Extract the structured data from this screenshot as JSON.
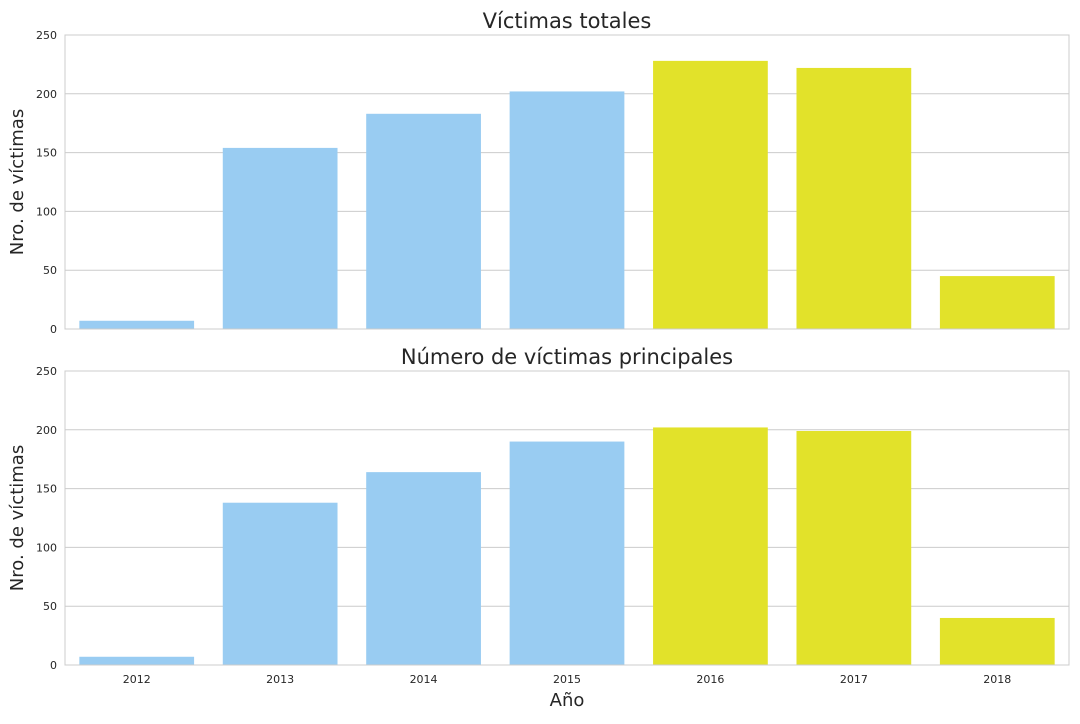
{
  "chart_data": [
    {
      "type": "bar",
      "title": "Víctimas totales",
      "ylabel": "Nro. de víctimas",
      "xlabel": "",
      "categories": [
        "2012",
        "2013",
        "2014",
        "2015",
        "2016",
        "2017",
        "2018"
      ],
      "values": [
        7,
        154,
        183,
        202,
        228,
        222,
        45
      ],
      "bar_colors": [
        "#99ccf2",
        "#99ccf2",
        "#99ccf2",
        "#99ccf2",
        "#e2e22a",
        "#e2e22a",
        "#e2e22a"
      ],
      "ylim": [
        0,
        250
      ],
      "yticks": [
        "0",
        "50",
        "100",
        "150",
        "200",
        "250"
      ],
      "show_xticks": false,
      "grid": "horizontal"
    },
    {
      "type": "bar",
      "title": "Número de víctimas principales",
      "ylabel": "Nro. de víctimas",
      "xlabel": "Año",
      "categories": [
        "2012",
        "2013",
        "2014",
        "2015",
        "2016",
        "2017",
        "2018"
      ],
      "values": [
        7,
        138,
        164,
        190,
        202,
        199,
        40
      ],
      "bar_colors": [
        "#99ccf2",
        "#99ccf2",
        "#99ccf2",
        "#99ccf2",
        "#e2e22a",
        "#e2e22a",
        "#e2e22a"
      ],
      "ylim": [
        0,
        250
      ],
      "yticks": [
        "0",
        "50",
        "100",
        "150",
        "200",
        "250"
      ],
      "show_xticks": true,
      "grid": "horizontal"
    }
  ]
}
